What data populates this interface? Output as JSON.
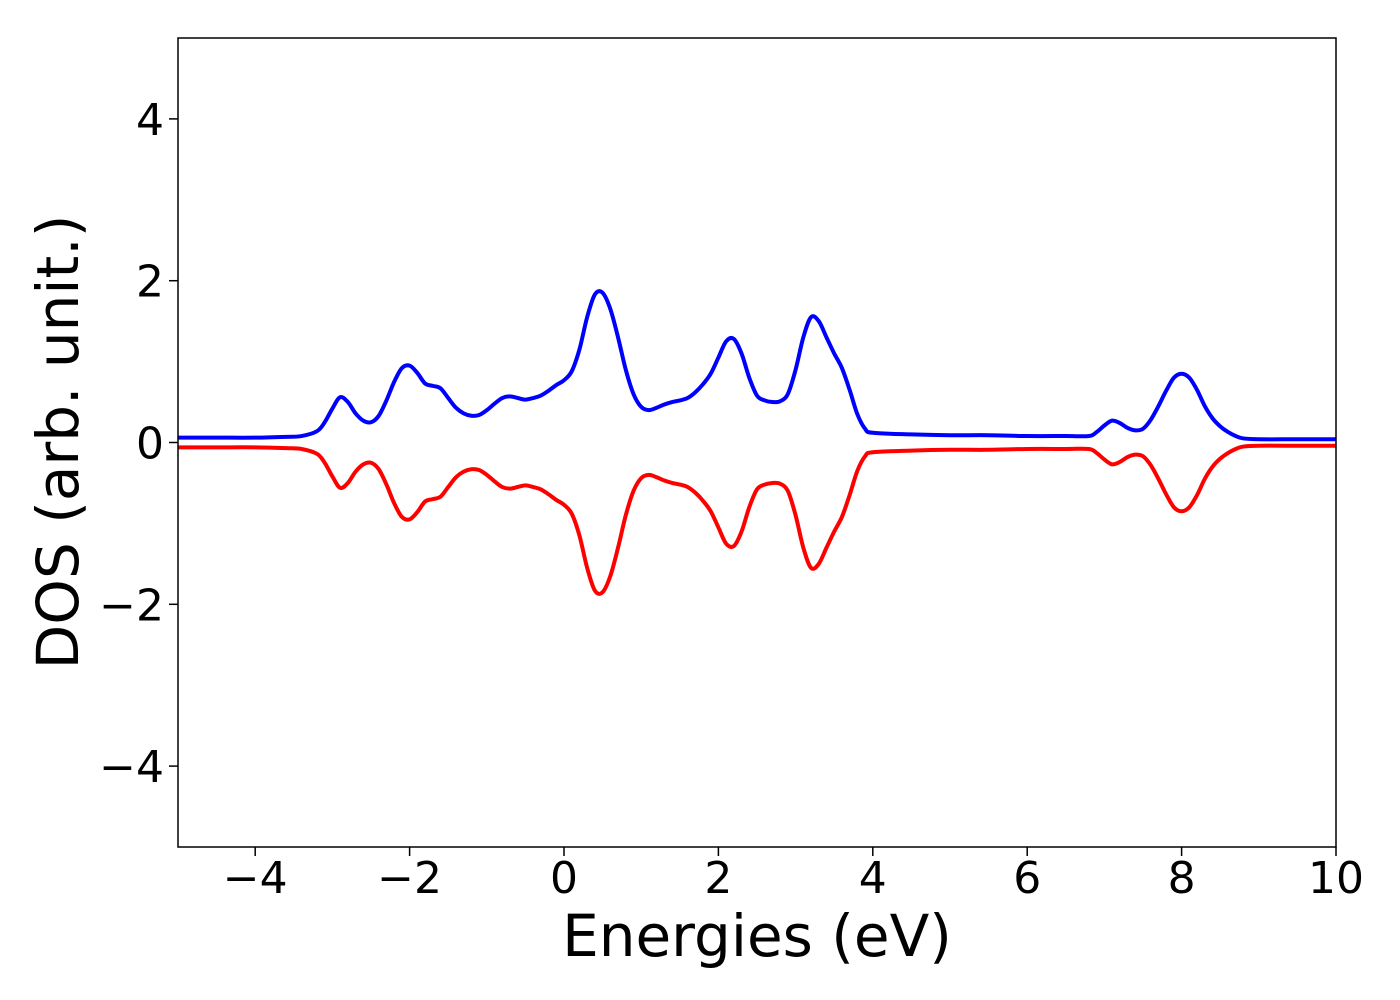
{
  "chart_data": {
    "type": "line",
    "xlabel": "Energies (eV)",
    "ylabel": "DOS (arb. unit.)",
    "xlim": [
      -5,
      10
    ],
    "ylim": [
      -5,
      5
    ],
    "xticks": [
      -4,
      -2,
      0,
      2,
      4,
      6,
      8,
      10
    ],
    "yticks": [
      -4,
      -2,
      0,
      2,
      4
    ],
    "xtick_labels": [
      "−4",
      "−2",
      "0",
      "2",
      "4",
      "6",
      "8",
      "10"
    ],
    "ytick_labels": [
      "−4",
      "−2",
      "0",
      "2",
      "4"
    ],
    "grid": false,
    "legend": "none",
    "series": [
      {
        "color": "#0000ff",
        "x": [
          -5,
          -4.5,
          -4,
          -3.6,
          -3.4,
          -3.2,
          -3.1,
          -3.0,
          -2.9,
          -2.8,
          -2.7,
          -2.6,
          -2.5,
          -2.4,
          -2.3,
          -2.2,
          -2.1,
          -2.0,
          -1.9,
          -1.8,
          -1.7,
          -1.6,
          -1.5,
          -1.4,
          -1.3,
          -1.2,
          -1.1,
          -1.0,
          -0.9,
          -0.8,
          -0.7,
          -0.6,
          -0.5,
          -0.4,
          -0.3,
          -0.2,
          -0.1,
          0.0,
          0.1,
          0.2,
          0.3,
          0.4,
          0.5,
          0.6,
          0.7,
          0.8,
          0.9,
          1.0,
          1.1,
          1.2,
          1.3,
          1.4,
          1.5,
          1.6,
          1.7,
          1.8,
          1.9,
          2.0,
          2.1,
          2.2,
          2.3,
          2.4,
          2.5,
          2.6,
          2.7,
          2.8,
          2.9,
          3.0,
          3.1,
          3.2,
          3.3,
          3.4,
          3.5,
          3.6,
          3.7,
          3.8,
          3.9,
          4.0,
          4.5,
          5.0,
          5.5,
          6.0,
          6.5,
          6.8,
          6.9,
          7.0,
          7.1,
          7.2,
          7.3,
          7.4,
          7.5,
          7.6,
          7.7,
          7.8,
          7.9,
          8.0,
          8.1,
          8.2,
          8.3,
          8.4,
          8.5,
          8.6,
          8.7,
          8.8,
          9.0,
          9.5,
          10.0
        ],
        "y": [
          0.06,
          0.06,
          0.06,
          0.07,
          0.08,
          0.14,
          0.25,
          0.42,
          0.56,
          0.5,
          0.36,
          0.27,
          0.25,
          0.33,
          0.52,
          0.75,
          0.92,
          0.95,
          0.86,
          0.73,
          0.7,
          0.67,
          0.55,
          0.43,
          0.36,
          0.33,
          0.34,
          0.4,
          0.48,
          0.55,
          0.57,
          0.55,
          0.53,
          0.55,
          0.58,
          0.64,
          0.71,
          0.77,
          0.88,
          1.15,
          1.55,
          1.83,
          1.85,
          1.65,
          1.3,
          0.9,
          0.6,
          0.44,
          0.4,
          0.43,
          0.47,
          0.5,
          0.52,
          0.55,
          0.62,
          0.72,
          0.85,
          1.05,
          1.25,
          1.28,
          1.1,
          0.8,
          0.58,
          0.52,
          0.5,
          0.51,
          0.6,
          0.9,
          1.3,
          1.55,
          1.5,
          1.3,
          1.1,
          0.92,
          0.65,
          0.35,
          0.17,
          0.12,
          0.1,
          0.09,
          0.09,
          0.08,
          0.08,
          0.08,
          0.13,
          0.21,
          0.27,
          0.24,
          0.18,
          0.15,
          0.17,
          0.28,
          0.45,
          0.64,
          0.8,
          0.85,
          0.8,
          0.65,
          0.45,
          0.3,
          0.2,
          0.13,
          0.08,
          0.05,
          0.04,
          0.04,
          0.04
        ]
      },
      {
        "color": "#ff0000",
        "x": [
          -5,
          -4.5,
          -4,
          -3.6,
          -3.4,
          -3.2,
          -3.1,
          -3.0,
          -2.9,
          -2.8,
          -2.7,
          -2.6,
          -2.5,
          -2.4,
          -2.3,
          -2.2,
          -2.1,
          -2.0,
          -1.9,
          -1.8,
          -1.7,
          -1.6,
          -1.5,
          -1.4,
          -1.3,
          -1.2,
          -1.1,
          -1.0,
          -0.9,
          -0.8,
          -0.7,
          -0.6,
          -0.5,
          -0.4,
          -0.3,
          -0.2,
          -0.1,
          0.0,
          0.1,
          0.2,
          0.3,
          0.4,
          0.5,
          0.6,
          0.7,
          0.8,
          0.9,
          1.0,
          1.1,
          1.2,
          1.3,
          1.4,
          1.5,
          1.6,
          1.7,
          1.8,
          1.9,
          2.0,
          2.1,
          2.2,
          2.3,
          2.4,
          2.5,
          2.6,
          2.7,
          2.8,
          2.9,
          3.0,
          3.1,
          3.2,
          3.3,
          3.4,
          3.5,
          3.6,
          3.7,
          3.8,
          3.9,
          4.0,
          4.5,
          5.0,
          5.5,
          6.0,
          6.5,
          6.8,
          6.9,
          7.0,
          7.1,
          7.2,
          7.3,
          7.4,
          7.5,
          7.6,
          7.7,
          7.8,
          7.9,
          8.0,
          8.1,
          8.2,
          8.3,
          8.4,
          8.5,
          8.6,
          8.7,
          8.8,
          9.0,
          9.5,
          10.0
        ],
        "y": [
          -0.06,
          -0.06,
          -0.06,
          -0.07,
          -0.08,
          -0.14,
          -0.25,
          -0.42,
          -0.56,
          -0.5,
          -0.36,
          -0.27,
          -0.25,
          -0.33,
          -0.52,
          -0.75,
          -0.92,
          -0.95,
          -0.86,
          -0.73,
          -0.7,
          -0.67,
          -0.55,
          -0.43,
          -0.36,
          -0.33,
          -0.34,
          -0.4,
          -0.48,
          -0.55,
          -0.57,
          -0.55,
          -0.53,
          -0.55,
          -0.58,
          -0.64,
          -0.71,
          -0.77,
          -0.88,
          -1.15,
          -1.55,
          -1.83,
          -1.85,
          -1.65,
          -1.3,
          -0.9,
          -0.6,
          -0.44,
          -0.4,
          -0.43,
          -0.47,
          -0.5,
          -0.52,
          -0.55,
          -0.62,
          -0.72,
          -0.85,
          -1.05,
          -1.25,
          -1.28,
          -1.1,
          -0.8,
          -0.58,
          -0.52,
          -0.5,
          -0.51,
          -0.6,
          -0.9,
          -1.3,
          -1.55,
          -1.5,
          -1.3,
          -1.1,
          -0.92,
          -0.65,
          -0.35,
          -0.17,
          -0.12,
          -0.1,
          -0.09,
          -0.09,
          -0.08,
          -0.08,
          -0.08,
          -0.13,
          -0.21,
          -0.27,
          -0.24,
          -0.18,
          -0.15,
          -0.17,
          -0.28,
          -0.45,
          -0.64,
          -0.8,
          -0.85,
          -0.8,
          -0.65,
          -0.45,
          -0.3,
          -0.2,
          -0.13,
          -0.08,
          -0.05,
          -0.04,
          -0.04,
          -0.04
        ]
      }
    ]
  }
}
